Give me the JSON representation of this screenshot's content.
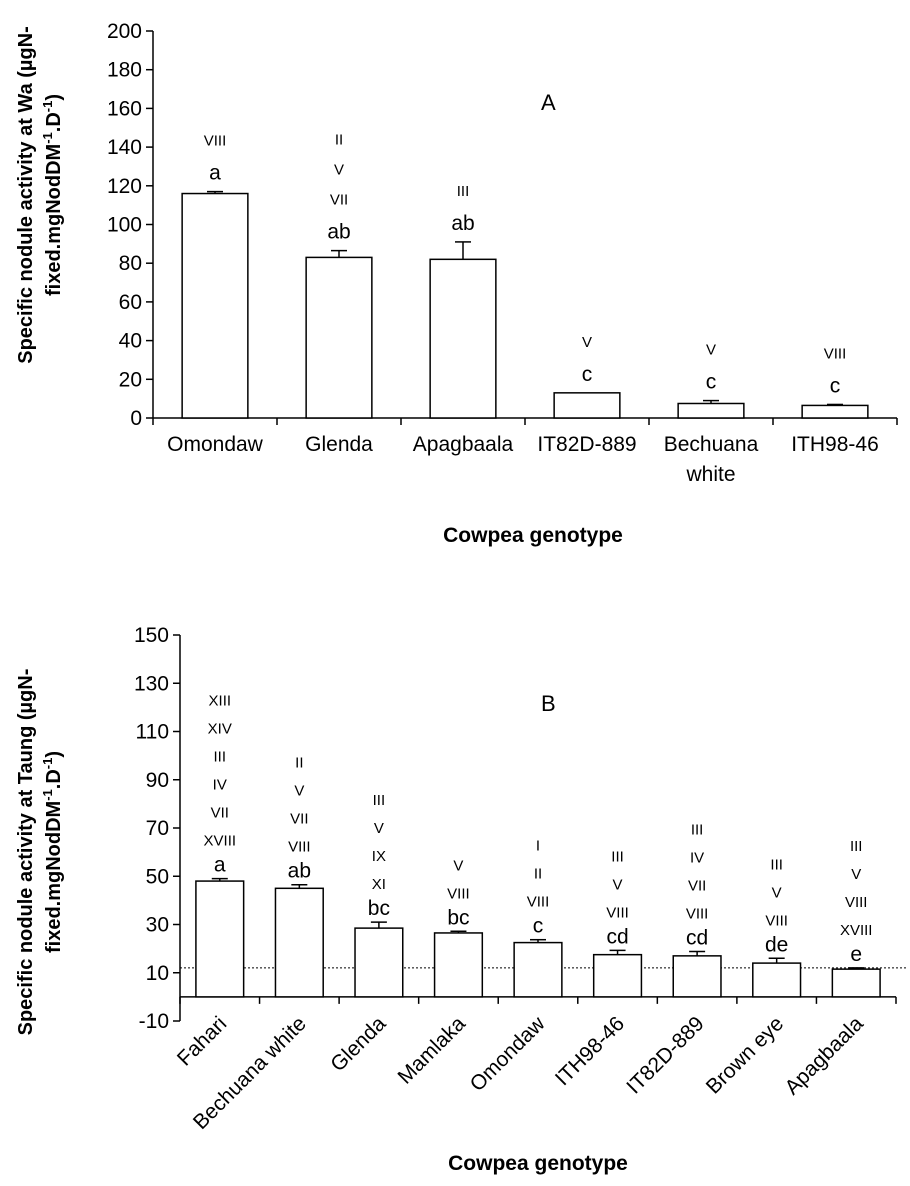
{
  "chart_data": [
    {
      "type": "bar",
      "panel_label": "A",
      "ylabel_line1": "Specific nodule activity at Wa (µgN-",
      "ylabel_line2": "fixed.mgNodDM",
      "ylabel_line2_sup": "-1",
      "ylabel_line2_mid": ".D",
      "ylabel_line2_sup2": "-1",
      "ylabel_line2_end": ")",
      "xlabel": "Cowpea genotype",
      "ylim": [
        0,
        200
      ],
      "yticks": [
        0,
        20,
        40,
        60,
        80,
        100,
        120,
        140,
        160,
        180,
        200
      ],
      "categories": [
        [
          "Omondaw"
        ],
        [
          "Glenda"
        ],
        [
          "Apagbaala"
        ],
        [
          "IT82D-889"
        ],
        [
          "Bechuana",
          "white"
        ],
        [
          "ITH98-46"
        ]
      ],
      "values": [
        116,
        83,
        82,
        13,
        7.5,
        6.5
      ],
      "errors": [
        1,
        3.5,
        9,
        0,
        1.5,
        0.5
      ],
      "letters": [
        "a",
        "ab",
        "ab",
        "c",
        "c",
        "c"
      ],
      "groups": [
        [
          "VIII"
        ],
        [
          "II",
          "V",
          "VII"
        ],
        [
          "III"
        ],
        [
          "V"
        ],
        [
          "V"
        ],
        [
          "VIII"
        ]
      ]
    },
    {
      "type": "bar",
      "panel_label": "B",
      "ylabel_line1": "Specific nodule activity at Taung (µgN-",
      "ylabel_line2": "fixed.mgNodDM",
      "ylabel_line2_sup": "-1",
      "ylabel_line2_mid": ".D",
      "ylabel_line2_sup2": "-1",
      "ylabel_line2_end": ")",
      "xlabel": "Cowpea genotype",
      "ylim": [
        -10,
        150
      ],
      "yticks": [
        -10,
        10,
        30,
        50,
        70,
        90,
        110,
        130,
        150
      ],
      "categories": [
        "Fahari",
        "Bechuana white",
        "Glenda",
        "Mamlaka",
        "Omondaw",
        "ITH98-46",
        "IT82D-889",
        "Brown eye",
        "Apagbaala"
      ],
      "values": [
        48,
        45,
        28.5,
        26.5,
        22.5,
        17.5,
        17,
        14,
        11.5
      ],
      "errors": [
        1,
        1.5,
        2.5,
        0.7,
        1.2,
        1.8,
        1.8,
        2,
        0.5
      ],
      "letters": [
        "a",
        "ab",
        "bc",
        "bc",
        "c",
        "cd",
        "cd",
        "de",
        "e"
      ],
      "groups": [
        [
          "XIII",
          "XIV",
          "III",
          "IV",
          "VII",
          "XVIII"
        ],
        [
          "II",
          "V",
          "VII",
          "VIII"
        ],
        [
          "III",
          "V",
          "IX",
          "XI"
        ],
        [
          "V",
          "VIII"
        ],
        [
          "I",
          "II",
          "VIII"
        ],
        [
          "III",
          "V",
          "VIII"
        ],
        [
          "III",
          "IV",
          "VII",
          "VIII"
        ],
        [
          "III",
          "V",
          "VIII"
        ],
        [
          "III",
          "V",
          "VIII",
          "XVIII"
        ]
      ],
      "reference_line": 12
    }
  ]
}
